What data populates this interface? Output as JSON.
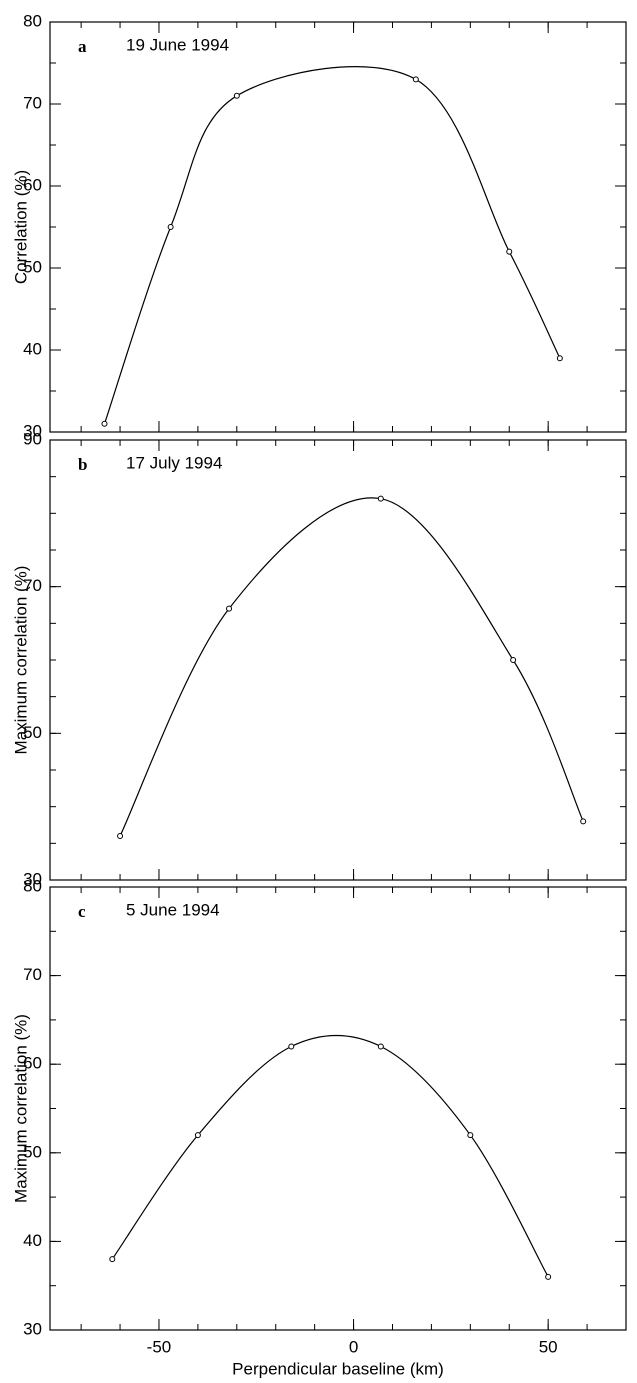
{
  "chart_data": [
    {
      "type": "line",
      "panel_label": "a",
      "annotation": "19 June 1994",
      "ylabel": "Correlation (%)",
      "x": [
        -64,
        -47,
        -30,
        16,
        40,
        53
      ],
      "values": [
        31,
        55,
        71,
        73,
        52,
        39
      ],
      "color": "#000000",
      "xlim": [
        -78,
        70
      ],
      "xticks": [
        -50,
        0,
        50
      ],
      "xminor": 10,
      "show_xtick_labels": false,
      "ylim": [
        30,
        80
      ],
      "yticks": [
        30,
        40,
        50,
        60,
        70,
        80
      ],
      "yminor": 5
    },
    {
      "type": "line",
      "panel_label": "b",
      "annotation": "17 July 1994",
      "ylabel": "Maximum correlation (%)",
      "x": [
        -60,
        -32,
        7,
        41,
        59
      ],
      "values": [
        36,
        67,
        82,
        60,
        38
      ],
      "color": "#000000",
      "xlim": [
        -78,
        70
      ],
      "xticks": [
        -50,
        0,
        50
      ],
      "xminor": 10,
      "show_xtick_labels": false,
      "ylim": [
        30,
        90
      ],
      "yticks": [
        30,
        50,
        70,
        90
      ],
      "yminor": 5
    },
    {
      "type": "line",
      "panel_label": "c",
      "annotation": "5 June 1994",
      "ylabel": "Maximum correlation (%)",
      "xlabel": "Perpendicular baseline (km)",
      "x": [
        -62,
        -40,
        -16,
        7,
        30,
        50
      ],
      "values": [
        38,
        52,
        62,
        62,
        52,
        36
      ],
      "color": "#000000",
      "xlim": [
        -78,
        70
      ],
      "xticks": [
        -50,
        0,
        50
      ],
      "xminor": 10,
      "show_xtick_labels": true,
      "ylim": [
        30,
        80
      ],
      "yticks": [
        30,
        40,
        50,
        60,
        70,
        80
      ],
      "yminor": 5
    }
  ]
}
